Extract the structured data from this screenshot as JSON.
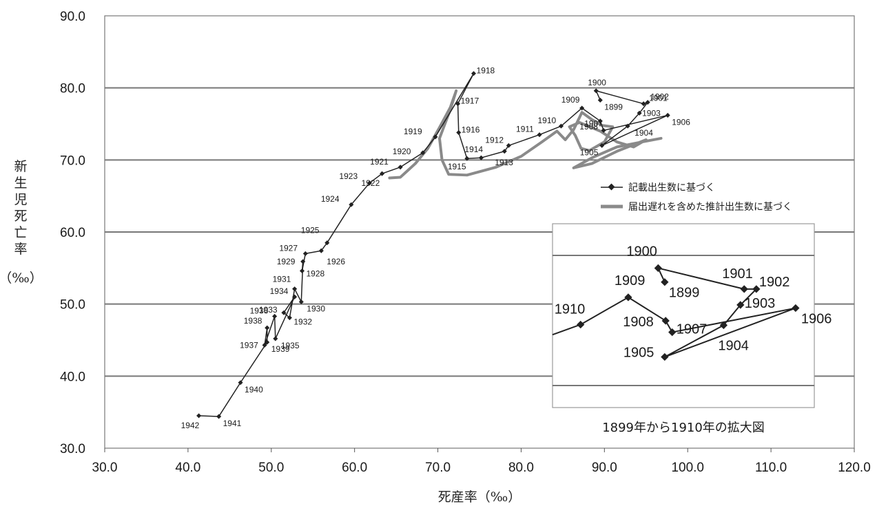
{
  "chart_data": {
    "type": "line",
    "title": "",
    "xlabel": "死産率（‰）",
    "ylabel": "新生児死亡率（‰）",
    "xlim": [
      30.0,
      120.0
    ],
    "ylim": [
      30.0,
      90.0
    ],
    "xticks": [
      "30.0",
      "40.0",
      "50.0",
      "60.0",
      "70.0",
      "80.0",
      "90.0",
      "100.0",
      "110.0",
      "120.0"
    ],
    "yticks": [
      "30.0",
      "40.0",
      "50.0",
      "60.0",
      "70.0",
      "80.0",
      "90.0"
    ],
    "grid": "horizontal",
    "legend": {
      "placement": "right",
      "entries": [
        "記載出生数に基づく",
        "届出遅れを含めた推計出生数に基づく"
      ]
    },
    "series": [
      {
        "name": "記載出生数に基づく",
        "color": "#222222",
        "marker": "diamond",
        "points": [
          {
            "year": "1899",
            "x": 89.5,
            "y": 78.3
          },
          {
            "year": "1900",
            "x": 89.0,
            "y": 79.6
          },
          {
            "year": "1901",
            "x": 94.7,
            "y": 77.8
          },
          {
            "year": "1902",
            "x": 95.2,
            "y": 78.0
          },
          {
            "year": "1903",
            "x": 94.2,
            "y": 76.5
          },
          {
            "year": "1904",
            "x": 92.8,
            "y": 74.7
          },
          {
            "year": "1905",
            "x": 89.7,
            "y": 72.0
          },
          {
            "year": "1906",
            "x": 97.6,
            "y": 76.2
          },
          {
            "year": "1907",
            "x": 89.9,
            "y": 74.1
          },
          {
            "year": "1908",
            "x": 89.5,
            "y": 75.4
          },
          {
            "year": "1909",
            "x": 87.3,
            "y": 77.2
          },
          {
            "year": "1910",
            "x": 84.8,
            "y": 74.7
          },
          {
            "year": "1911",
            "x": 82.2,
            "y": 73.5
          },
          {
            "year": "1912",
            "x": 78.5,
            "y": 72.0
          },
          {
            "year": "1913",
            "x": 78.0,
            "y": 71.2
          },
          {
            "year": "1914",
            "x": 75.2,
            "y": 70.3
          },
          {
            "year": "1915",
            "x": 73.5,
            "y": 70.2
          },
          {
            "year": "1916",
            "x": 72.5,
            "y": 73.8
          },
          {
            "year": "1917",
            "x": 72.4,
            "y": 77.8
          },
          {
            "year": "1918",
            "x": 74.3,
            "y": 82.0
          },
          {
            "year": "1919",
            "x": 69.7,
            "y": 73.2
          },
          {
            "year": "1920",
            "x": 68.2,
            "y": 71.0
          },
          {
            "year": "1921",
            "x": 65.5,
            "y": 69.0
          },
          {
            "year": "1922",
            "x": 63.3,
            "y": 68.1
          },
          {
            "year": "1923",
            "x": 61.8,
            "y": 66.8
          },
          {
            "year": "1924",
            "x": 59.6,
            "y": 63.8
          },
          {
            "year": "1925",
            "x": 56.7,
            "y": 58.5
          },
          {
            "year": "1926",
            "x": 56.0,
            "y": 57.4
          },
          {
            "year": "1927",
            "x": 54.1,
            "y": 57.0
          },
          {
            "year": "1928",
            "x": 53.7,
            "y": 54.6
          },
          {
            "year": "1929",
            "x": 53.8,
            "y": 55.9
          },
          {
            "year": "1930",
            "x": 53.6,
            "y": 50.3
          },
          {
            "year": "1931",
            "x": 52.8,
            "y": 52.1
          },
          {
            "year": "1932",
            "x": 52.2,
            "y": 48.1
          },
          {
            "year": "1933",
            "x": 51.5,
            "y": 48.8
          },
          {
            "year": "1934",
            "x": 52.8,
            "y": 51.0
          },
          {
            "year": "1935",
            "x": 50.5,
            "y": 45.2
          },
          {
            "year": "1936",
            "x": 50.4,
            "y": 48.3
          },
          {
            "year": "1937",
            "x": 49.2,
            "y": 44.3
          },
          {
            "year": "1938",
            "x": 49.5,
            "y": 46.7
          },
          {
            "year": "1939",
            "x": 49.5,
            "y": 44.7
          },
          {
            "year": "1940",
            "x": 46.3,
            "y": 39.1
          },
          {
            "year": "1941",
            "x": 43.7,
            "y": 34.4
          },
          {
            "year": "1942",
            "x": 41.3,
            "y": 34.5
          }
        ],
        "path_order": [
          "1942",
          "1941",
          "1940",
          "1939",
          "1938",
          "1937",
          "1936",
          "1935",
          "1934",
          "1933",
          "1932",
          "1931",
          "1930",
          "1929",
          "1928",
          "1927",
          "1926",
          "1925",
          "1924",
          "1923",
          "1922",
          "1921",
          "1920",
          "1919",
          "1918",
          "1917",
          "1916",
          "1915",
          "1914",
          "1913",
          "1912",
          "1911",
          "1910",
          "1909",
          "1908",
          "1907",
          "1906",
          "1905",
          "1904",
          "1903",
          "1902",
          "1901",
          "1900",
          "1899"
        ]
      },
      {
        "name": "届出遅れを含めた推計出生数に基づく",
        "color": "#8a8a8a",
        "marker": "none",
        "points": [
          {
            "x": 64.2,
            "y": 67.5
          },
          {
            "x": 65.5,
            "y": 67.6
          },
          {
            "x": 67.3,
            "y": 69.5
          },
          {
            "x": 68.8,
            "y": 71.6
          },
          {
            "x": 70.2,
            "y": 74.5
          },
          {
            "x": 71.5,
            "y": 77.3
          },
          {
            "x": 72.2,
            "y": 79.6
          },
          {
            "x": 71.5,
            "y": 77.0
          },
          {
            "x": 70.2,
            "y": 73.0
          },
          {
            "x": 70.5,
            "y": 70.0
          },
          {
            "x": 71.3,
            "y": 68.0
          },
          {
            "x": 73.5,
            "y": 67.9
          },
          {
            "x": 77.0,
            "y": 69.0
          },
          {
            "x": 80.0,
            "y": 70.5
          },
          {
            "x": 82.5,
            "y": 72.5
          },
          {
            "x": 84.3,
            "y": 74.0
          },
          {
            "x": 85.3,
            "y": 72.8
          },
          {
            "x": 86.3,
            "y": 74.2
          },
          {
            "x": 87.3,
            "y": 76.6
          },
          {
            "x": 88.5,
            "y": 75.6
          },
          {
            "x": 89.7,
            "y": 74.8
          },
          {
            "x": 91.0,
            "y": 74.6
          },
          {
            "x": 90.0,
            "y": 72.5
          },
          {
            "x": 88.2,
            "y": 71.3
          },
          {
            "x": 87.2,
            "y": 71.6
          },
          {
            "x": 86.5,
            "y": 73.4
          },
          {
            "x": 85.8,
            "y": 74.6
          },
          {
            "x": 87.0,
            "y": 75.2
          },
          {
            "x": 89.5,
            "y": 74.0
          },
          {
            "x": 91.5,
            "y": 72.5
          },
          {
            "x": 93.5,
            "y": 71.8
          },
          {
            "x": 95.0,
            "y": 72.8
          },
          {
            "x": 91.5,
            "y": 71.2
          },
          {
            "x": 88.5,
            "y": 69.5
          },
          {
            "x": 86.3,
            "y": 68.9
          },
          {
            "x": 88.5,
            "y": 70.3
          },
          {
            "x": 91.5,
            "y": 71.8
          },
          {
            "x": 94.5,
            "y": 72.5
          },
          {
            "x": 96.8,
            "y": 73.0
          }
        ]
      }
    ],
    "inset": {
      "caption": "1899年から1910年の拡大図",
      "points": [
        {
          "year": "1899",
          "x": 96.0,
          "y": 53.8
        },
        {
          "year": "1900",
          "x": 95.3,
          "y": 56.0
        },
        {
          "year": "1901",
          "x": 104.5,
          "y": 52.7
        },
        {
          "year": "1902",
          "x": 105.8,
          "y": 52.7
        },
        {
          "year": "1903",
          "x": 104.1,
          "y": 50.2
        },
        {
          "year": "1904",
          "x": 102.3,
          "y": 47.0
        },
        {
          "year": "1905",
          "x": 96.0,
          "y": 42.0
        },
        {
          "year": "1906",
          "x": 110.0,
          "y": 49.7
        },
        {
          "year": "1907",
          "x": 96.8,
          "y": 45.9
        },
        {
          "year": "1908",
          "x": 96.1,
          "y": 47.7
        },
        {
          "year": "1909",
          "x": 92.1,
          "y": 51.4
        },
        {
          "year": "1910",
          "x": 87.0,
          "y": 47.1
        }
      ],
      "path_order": [
        "1899",
        "1900",
        "1901",
        "1902",
        "1903",
        "1904",
        "1905",
        "1906",
        "1907",
        "1908",
        "1909",
        "1910"
      ]
    }
  }
}
